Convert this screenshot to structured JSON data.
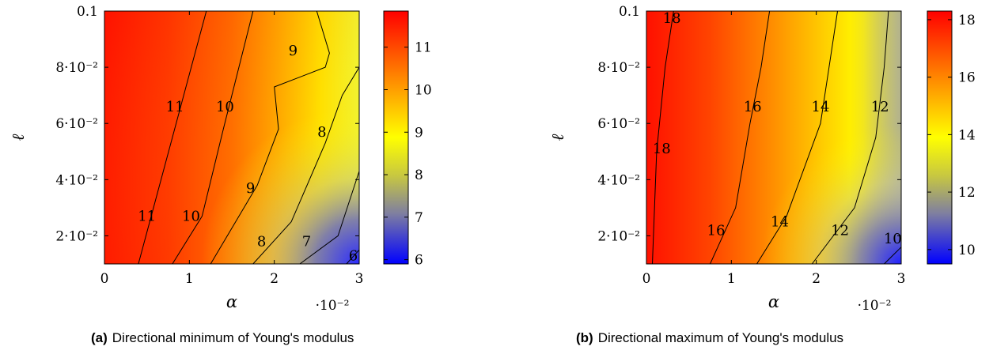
{
  "chart_data": [
    {
      "type": "heatmap",
      "id": "a",
      "caption_tag": "(a)",
      "caption_text": "Directional minimum of Young's modulus",
      "xlabel": "α",
      "ylabel": "ℓ",
      "x_multiplier": "·10⁻²",
      "x_ticks": [
        "0",
        "1",
        "2",
        "3"
      ],
      "x_tick_values": [
        0,
        1,
        2,
        3
      ],
      "y_ticks": [
        "2·10⁻²",
        "4·10⁻²",
        "6·10⁻²",
        "8·10⁻²",
        "0.1"
      ],
      "y_tick_values": [
        0.02,
        0.04,
        0.06,
        0.08,
        0.1
      ],
      "xlim": [
        0,
        3
      ],
      "ylim": [
        0.01,
        0.1
      ],
      "colorbar": {
        "ticks": [
          "6",
          "7",
          "8",
          "9",
          "10",
          "11"
        ],
        "tick_values": [
          6,
          7,
          8,
          9,
          10,
          11
        ],
        "range": [
          5.9,
          11.85
        ]
      },
      "contours": [
        {
          "level": "11",
          "points": [
            [
              0.4,
              0.01
            ],
            [
              1.2,
              0.1
            ]
          ]
        },
        {
          "level": "10",
          "points": [
            [
              0.8,
              0.01
            ],
            [
              1.15,
              0.027
            ],
            [
              1.4,
              0.058
            ],
            [
              1.75,
              0.1
            ]
          ]
        },
        {
          "level": "9",
          "points": [
            [
              1.25,
              0.01
            ],
            [
              1.8,
              0.038
            ],
            [
              2.05,
              0.058
            ],
            [
              2.0,
              0.073
            ],
            [
              2.6,
              0.08
            ],
            [
              2.65,
              0.085
            ],
            [
              2.5,
              0.1
            ]
          ]
        },
        {
          "level": "8",
          "points": [
            [
              1.75,
              0.01
            ],
            [
              2.2,
              0.025
            ],
            [
              2.6,
              0.053
            ],
            [
              2.8,
              0.07
            ],
            [
              3.0,
              0.08
            ]
          ]
        },
        {
          "level": "7",
          "points": [
            [
              2.3,
              0.01
            ],
            [
              2.75,
              0.02
            ],
            [
              3.0,
              0.043
            ]
          ]
        },
        {
          "level": "6",
          "points": [
            [
              2.85,
              0.01
            ],
            [
              3.0,
              0.015
            ]
          ]
        }
      ],
      "contour_labels": [
        {
          "text": "11",
          "x": 0.83,
          "y": 0.066
        },
        {
          "text": "10",
          "x": 1.42,
          "y": 0.066
        },
        {
          "text": "9",
          "x": 2.22,
          "y": 0.086
        },
        {
          "text": "8",
          "x": 2.56,
          "y": 0.057
        },
        {
          "text": "9",
          "x": 1.72,
          "y": 0.037
        },
        {
          "text": "11",
          "x": 0.5,
          "y": 0.027
        },
        {
          "text": "10",
          "x": 1.02,
          "y": 0.027
        },
        {
          "text": "8",
          "x": 1.85,
          "y": 0.018
        },
        {
          "text": "7",
          "x": 2.38,
          "y": 0.018
        },
        {
          "text": "6",
          "x": 2.93,
          "y": 0.013
        }
      ]
    },
    {
      "type": "heatmap",
      "id": "b",
      "caption_tag": "(b)",
      "caption_text": "Directional maximum of Young's modulus",
      "xlabel": "α",
      "ylabel": "ℓ",
      "x_multiplier": "·10⁻²",
      "x_ticks": [
        "0",
        "1",
        "2",
        "3"
      ],
      "x_tick_values": [
        0,
        1,
        2,
        3
      ],
      "y_ticks": [
        "2·10⁻²",
        "4·10⁻²",
        "6·10⁻²",
        "8·10⁻²",
        "0.1"
      ],
      "y_tick_values": [
        0.02,
        0.04,
        0.06,
        0.08,
        0.1
      ],
      "xlim": [
        0,
        3
      ],
      "ylim": [
        0.01,
        0.1
      ],
      "colorbar": {
        "ticks": [
          "10",
          "12",
          "14",
          "16",
          "18"
        ],
        "tick_values": [
          10,
          12,
          14,
          16,
          18
        ],
        "range": [
          9.5,
          18.3
        ]
      },
      "contours": [
        {
          "level": "18",
          "points": [
            [
              0.07,
              0.01
            ],
            [
              0.12,
              0.05
            ],
            [
              0.22,
              0.08
            ],
            [
              0.32,
              0.1
            ]
          ]
        },
        {
          "level": "16",
          "points": [
            [
              0.75,
              0.01
            ],
            [
              1.05,
              0.03
            ],
            [
              1.22,
              0.06
            ],
            [
              1.35,
              0.08
            ],
            [
              1.45,
              0.1
            ]
          ]
        },
        {
          "level": "14",
          "points": [
            [
              1.3,
              0.01
            ],
            [
              1.65,
              0.027
            ],
            [
              2.05,
              0.06
            ],
            [
              2.15,
              0.08
            ],
            [
              2.25,
              0.1
            ]
          ]
        },
        {
          "level": "12",
          "points": [
            [
              1.95,
              0.01
            ],
            [
              2.45,
              0.03
            ],
            [
              2.7,
              0.055
            ],
            [
              2.8,
              0.08
            ],
            [
              2.85,
              0.1
            ]
          ]
        },
        {
          "level": "10",
          "points": [
            [
              2.8,
              0.01
            ],
            [
              3.0,
              0.016
            ]
          ]
        }
      ],
      "contour_labels": [
        {
          "text": "18",
          "x": 0.3,
          "y": 0.0975
        },
        {
          "text": "16",
          "x": 1.25,
          "y": 0.066
        },
        {
          "text": "14",
          "x": 2.05,
          "y": 0.066
        },
        {
          "text": "12",
          "x": 2.75,
          "y": 0.066
        },
        {
          "text": "18",
          "x": 0.18,
          "y": 0.051
        },
        {
          "text": "16",
          "x": 0.82,
          "y": 0.022
        },
        {
          "text": "14",
          "x": 1.57,
          "y": 0.025
        },
        {
          "text": "12",
          "x": 2.28,
          "y": 0.022
        },
        {
          "text": "10",
          "x": 2.9,
          "y": 0.019
        }
      ]
    }
  ]
}
